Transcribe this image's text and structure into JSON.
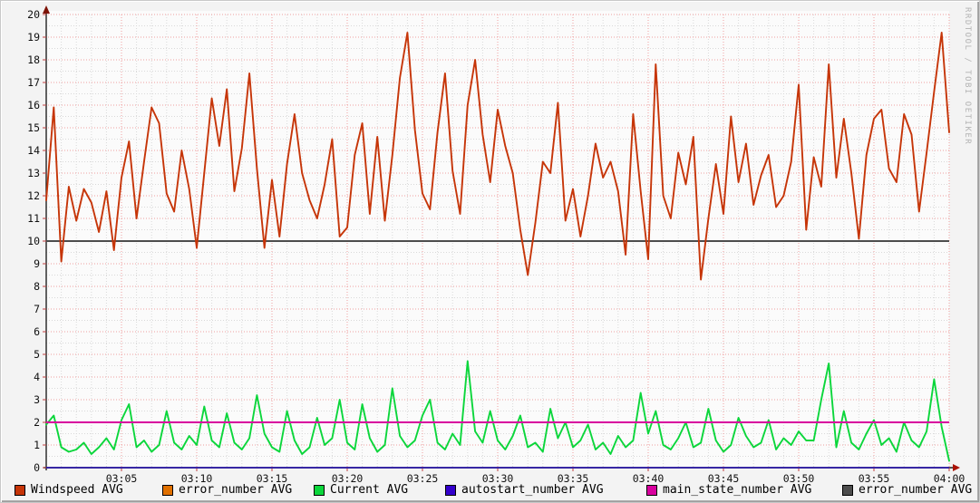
{
  "watermark": "RRDTOOL / TOBI OETIKER",
  "legend": {
    "items": [
      {
        "label": "Windspeed AVG",
        "color": "#c63508"
      },
      {
        "label": "error_number AVG",
        "color": "#e07000"
      },
      {
        "label": "Current AVG",
        "color": "#0bd63b"
      },
      {
        "label": "autostart_number AVG",
        "color": "#3300cc"
      },
      {
        "label": "main_state_number AVG",
        "color": "#d8009e"
      },
      {
        "label": "error_number AVG",
        "color": "#4d4d4d"
      }
    ]
  },
  "chart_data": {
    "type": "line",
    "title": "",
    "xlabel": "",
    "ylabel": "",
    "ylim": [
      0,
      20
    ],
    "y_tick_step": 1,
    "x_start": "03:00",
    "x_end": "04:00",
    "step_seconds": 30,
    "x_tick_labels": [
      "03:05",
      "03:10",
      "03:15",
      "03:20",
      "03:25",
      "03:30",
      "03:35",
      "03:40",
      "03:45",
      "03:50",
      "03:55",
      "04:00"
    ],
    "grid": {
      "major_color": "#ef9f9f",
      "minor_color": "#d9d9d9",
      "minor_y_step": 0.5,
      "minor_x_step_minutes": 1,
      "major_x_step_minutes": 5
    },
    "axis_color": "#222222",
    "y_arrow_color": "#7d1205",
    "x_arrow_color": "#aa1205",
    "canvas_color": "#fbfbfb",
    "background_color": "#f3f3f3",
    "series": [
      {
        "name": "Windspeed AVG",
        "color": "#c63508",
        "values": [
          11.8,
          15.9,
          9.1,
          12.4,
          10.9,
          12.3,
          11.7,
          10.4,
          12.2,
          9.6,
          12.8,
          14.4,
          11.0,
          13.5,
          15.9,
          15.2,
          12.1,
          11.3,
          14.0,
          12.3,
          9.7,
          13.0,
          16.3,
          14.2,
          16.7,
          12.2,
          14.1,
          17.4,
          13.2,
          9.7,
          12.7,
          10.2,
          13.4,
          15.6,
          13.0,
          11.8,
          11.0,
          12.5,
          14.5,
          10.2,
          10.6,
          13.8,
          15.2,
          11.2,
          14.6,
          10.9,
          13.8,
          17.2,
          19.2,
          14.9,
          12.1,
          11.4,
          14.8,
          17.4,
          13.1,
          11.2,
          16.0,
          18.0,
          14.7,
          12.6,
          15.8,
          14.2,
          13.0,
          10.5,
          8.5,
          10.8,
          13.5,
          13.0,
          16.1,
          10.9,
          12.3,
          10.2,
          12.0,
          14.3,
          12.8,
          13.5,
          12.2,
          9.4,
          15.6,
          12.2,
          9.2,
          17.8,
          12.0,
          11.0,
          13.9,
          12.5,
          14.6,
          8.3,
          11.0,
          13.4,
          11.2,
          15.5,
          12.6,
          14.3,
          11.6,
          12.9,
          13.8,
          11.5,
          12.0,
          13.5,
          16.9,
          10.5,
          13.7,
          12.4,
          17.8,
          12.8,
          15.4,
          13.0,
          10.1,
          13.8,
          15.4,
          15.8,
          13.2,
          12.6,
          15.6,
          14.7,
          11.3,
          13.9,
          16.6,
          19.2,
          14.8
        ]
      },
      {
        "name": "Current AVG",
        "color": "#0bd63b",
        "values": [
          1.9,
          2.3,
          0.9,
          0.7,
          0.8,
          1.1,
          0.6,
          0.9,
          1.3,
          0.8,
          2.1,
          2.8,
          0.9,
          1.2,
          0.7,
          1.0,
          2.5,
          1.1,
          0.8,
          1.4,
          1.0,
          2.7,
          1.2,
          0.9,
          2.4,
          1.1,
          0.8,
          1.3,
          3.2,
          1.5,
          0.9,
          0.7,
          2.5,
          1.2,
          0.6,
          0.9,
          2.2,
          1.0,
          1.3,
          3.0,
          1.1,
          0.8,
          2.8,
          1.3,
          0.7,
          1.0,
          3.5,
          1.4,
          0.9,
          1.2,
          2.3,
          3.0,
          1.1,
          0.8,
          1.5,
          1.0,
          4.7,
          1.6,
          1.1,
          2.5,
          1.2,
          0.8,
          1.4,
          2.3,
          0.9,
          1.1,
          0.7,
          2.6,
          1.3,
          2.0,
          0.9,
          1.2,
          1.9,
          0.8,
          1.1,
          0.6,
          1.4,
          0.9,
          1.2,
          3.3,
          1.5,
          2.5,
          1.0,
          0.8,
          1.3,
          2.0,
          0.9,
          1.1,
          2.6,
          1.2,
          0.7,
          1.0,
          2.2,
          1.4,
          0.9,
          1.1,
          2.1,
          0.8,
          1.3,
          1.0,
          1.6,
          1.2,
          1.2,
          3.0,
          4.6,
          0.9,
          2.5,
          1.1,
          0.8,
          1.5,
          2.1,
          1.0,
          1.3,
          0.7,
          2.0,
          1.2,
          0.9,
          1.6,
          3.9,
          1.8,
          0.3
        ]
      }
    ],
    "constant_lines": [
      {
        "name": "error_number AVG",
        "value": 10,
        "color": "#4d4d4d"
      },
      {
        "name": "autostart_number AVG",
        "value": 0,
        "color": "#2c1aa8"
      },
      {
        "name": "main_state_number AVG",
        "value": 2,
        "color": "#d8009e"
      }
    ],
    "legend_position": "bottom"
  }
}
